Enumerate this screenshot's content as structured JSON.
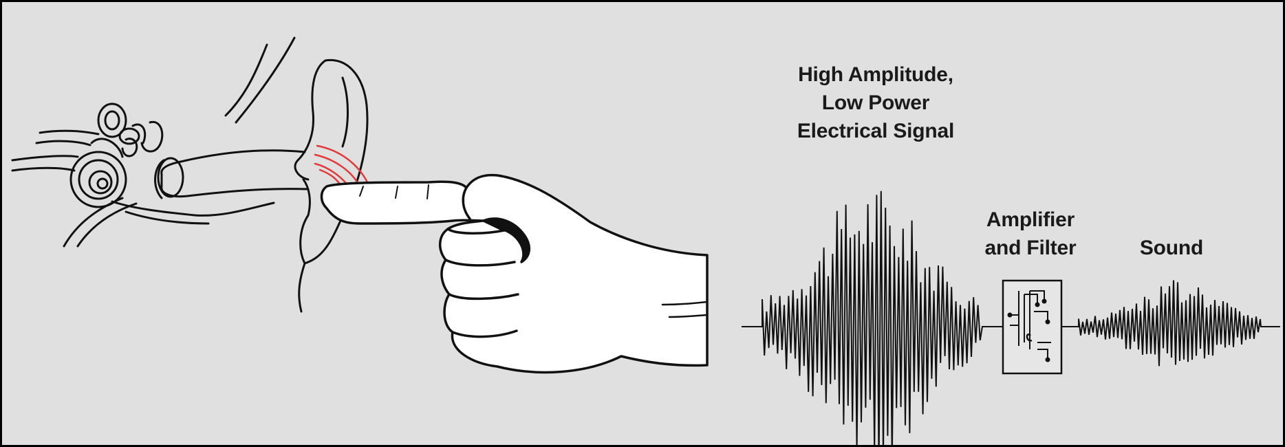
{
  "labels": {
    "signal": [
      "High Amplitude,",
      "Low Power",
      "Electrical Signal"
    ],
    "amplifier": [
      "Amplifier",
      "and Filter"
    ],
    "sound": "Sound"
  },
  "colors": {
    "background": "#e0e0e0",
    "ink": "#111111",
    "vibration": "#e23a3a",
    "skin": "#ffffff"
  },
  "icons": {
    "ear": "ear-anatomy-icon",
    "hand": "pointing-hand-icon",
    "chip": "circuit-chip-icon"
  }
}
